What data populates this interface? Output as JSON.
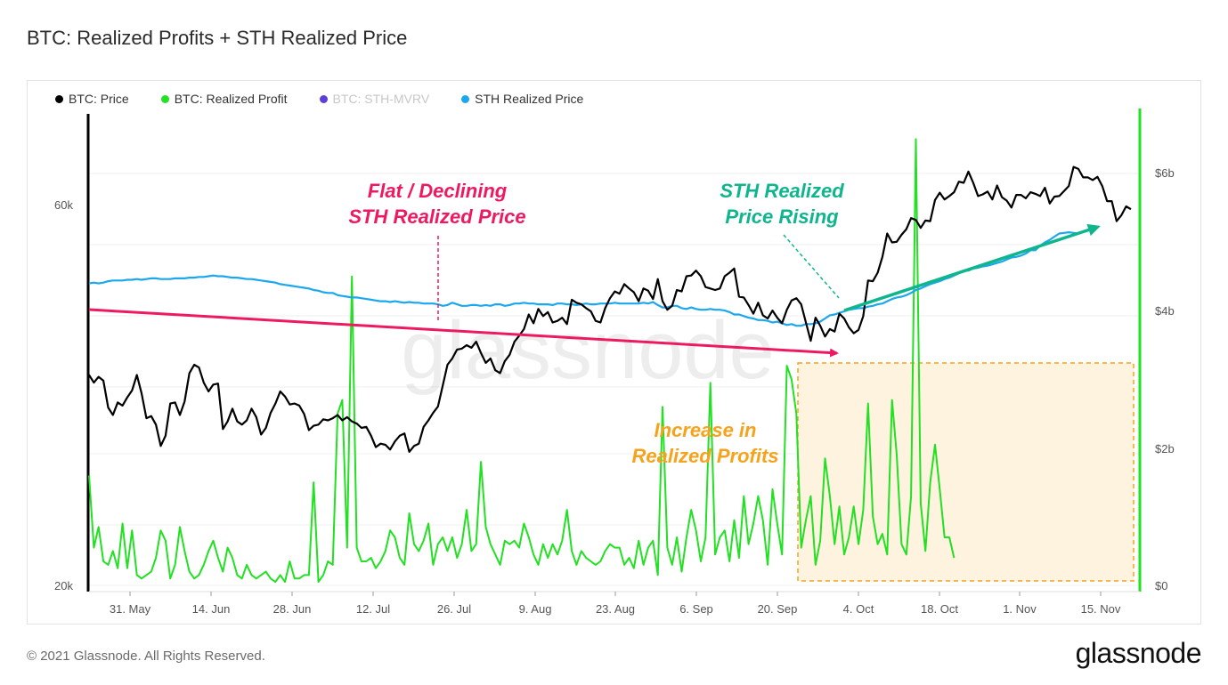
{
  "title": "BTC: Realized Profits + STH Realized Price",
  "legend": [
    {
      "label": "BTC: Price",
      "color": "#000000",
      "muted": false
    },
    {
      "label": "BTC: Realized Profit",
      "color": "#22e022",
      "muted": false
    },
    {
      "label": "BTC: STH-MVRV",
      "color": "#5b3fd6",
      "muted": true
    },
    {
      "label": "STH Realized Price",
      "color": "#1aa7ee",
      "muted": false
    }
  ],
  "footer": "© 2021 Glassnode. All Rights Reserved.",
  "brand": "glassnode",
  "watermark": "glassnode",
  "chart_data": {
    "type": "line",
    "x_ticks": [
      "31. May",
      "14. Jun",
      "28. Jun",
      "12. Jul",
      "26. Jul",
      "9. Aug",
      "23. Aug",
      "6. Sep",
      "20. Sep",
      "4. Oct",
      "18. Oct",
      "1. Nov",
      "15. Nov"
    ],
    "y_left_ticks": [
      "60k",
      "20k"
    ],
    "y_right_ticks": [
      "$6b",
      "$4b",
      "$2b",
      "$0"
    ],
    "y_left_scale": "log",
    "y_right_range": [
      0,
      7000000000
    ],
    "series": [
      {
        "name": "BTC: Price",
        "axis": "left",
        "color": "#000000",
        "values": [
          36700,
          35900,
          36500,
          36100,
          33400,
          32700,
          33900,
          33600,
          34400,
          35100,
          36700,
          34800,
          32400,
          32600,
          31800,
          29900,
          30800,
          33800,
          33900,
          32700,
          34000,
          36900,
          37800,
          37500,
          35900,
          35000,
          35700,
          35800,
          31400,
          32100,
          33300,
          32100,
          31800,
          32200,
          33300,
          32500,
          30900,
          31500,
          32900,
          33800,
          35000,
          34500,
          33700,
          33800,
          33600,
          32800,
          31300,
          31700,
          31800,
          32300,
          32200,
          32400,
          32700,
          32200,
          32500,
          32100,
          31900,
          31500,
          31600,
          30800,
          29800,
          30100,
          30000,
          29600,
          30300,
          30800,
          31000,
          29400,
          29900,
          30100,
          31600,
          32200,
          32900,
          33500,
          35600,
          37800,
          38500,
          39500,
          39600,
          40000,
          39700,
          40400,
          39100,
          38000,
          38500,
          37200,
          36900,
          38200,
          38900,
          40400,
          41100,
          41900,
          43700,
          42600,
          44400,
          43500,
          44000,
          42700,
          42900,
          43300,
          42500,
          45600,
          45200,
          45000,
          44500,
          44100,
          42900,
          42700,
          44500,
          45800,
          46700,
          46400,
          47700,
          47100,
          46600,
          45400,
          47100,
          46800,
          45700,
          48400,
          45400,
          44300,
          44800,
          46900,
          46700,
          48800,
          48900,
          49600,
          48800,
          47300,
          47100,
          46900,
          47100,
          48800,
          49300,
          49900,
          46000,
          45900,
          44900,
          43800,
          45200,
          43600,
          43200,
          44200,
          43300,
          42600,
          44300,
          45500,
          45800,
          45000,
          42700,
          40500,
          43300,
          42300,
          41000,
          41900,
          41600,
          43800,
          43200,
          42100,
          41400,
          41800,
          43500,
          48200,
          48100,
          49300,
          51600,
          55200,
          53800,
          53900,
          55000,
          55900,
          57700,
          57400,
          56100,
          57300,
          57200,
          60800,
          62100,
          60900,
          61500,
          62200,
          64100,
          63900,
          66000,
          63900,
          61500,
          61800,
          62300,
          60900,
          63400,
          61300,
          60700,
          59500,
          61700,
          61700,
          61100,
          62200,
          61900,
          61500,
          63000,
          60200,
          61400,
          61500,
          62400,
          63300,
          66900,
          66500,
          64900,
          64900,
          64400,
          65000,
          63300,
          60600,
          60600,
          57200,
          58200,
          59700,
          59200
        ]
      },
      {
        "name": "STH Realized Price",
        "axis": "left",
        "color": "#1aa7ee",
        "values": [
          47800,
          47900,
          47800,
          47900,
          48100,
          48200,
          48200,
          48200,
          48300,
          48300,
          48400,
          48300,
          48400,
          48500,
          48500,
          48400,
          48400,
          48400,
          48500,
          48500,
          48500,
          48600,
          48600,
          48700,
          48700,
          48800,
          48900,
          48800,
          48800,
          48700,
          48600,
          48600,
          48500,
          48400,
          48400,
          48300,
          48200,
          48100,
          48000,
          47900,
          47700,
          47600,
          47500,
          47400,
          47300,
          47200,
          47100,
          46900,
          46800,
          46600,
          46500,
          46500,
          46200,
          46100,
          46000,
          45900,
          45900,
          45800,
          45700,
          45600,
          45500,
          45400,
          45400,
          45300,
          45400,
          45300,
          45200,
          45300,
          45200,
          45200,
          45100,
          45100,
          45100,
          45000,
          44800,
          44900,
          45200,
          45000,
          44800,
          44800,
          44900,
          44900,
          44800,
          44900,
          44800,
          45000,
          45000,
          44800,
          44900,
          45100,
          45100,
          45200,
          45100,
          45100,
          45000,
          45000,
          45000,
          44900,
          45100,
          45100,
          45000,
          45000,
          44900,
          45000,
          45100,
          45000,
          45000,
          45100,
          45100,
          45100,
          45200,
          45100,
          45100,
          45100,
          45100,
          45100,
          45200,
          45100,
          45300,
          44900,
          44600,
          44600,
          44800,
          44800,
          44500,
          44400,
          44600,
          44400,
          44300,
          44300,
          44400,
          44300,
          44300,
          44200,
          44000,
          43700,
          43700,
          43500,
          43300,
          43200,
          43000,
          43000,
          42900,
          42700,
          42800,
          42600,
          42400,
          42500,
          42300,
          42300,
          42500,
          42500,
          42600,
          42800,
          43200,
          43600,
          43700,
          43900,
          44100,
          44300,
          44400,
          44500,
          44500,
          44700,
          44800,
          45000,
          45100,
          45400,
          45700,
          45900,
          46000,
          46200,
          46500,
          46900,
          47100,
          47400,
          47700,
          47900,
          48100,
          48400,
          48600,
          48900,
          49200,
          49600,
          49600,
          49900,
          50000,
          50200,
          50300,
          50500,
          50700,
          50900,
          51200,
          51500,
          51600,
          51800,
          52100,
          52600,
          52600,
          53300,
          53800,
          54200,
          54700,
          55200,
          55300,
          55400,
          55300,
          55200
        ]
      },
      {
        "name": "BTC: Realized Profit",
        "axis": "right",
        "color": "#22e022",
        "values": [
          1600000000.0,
          550000000.0,
          850000000.0,
          350000000.0,
          300000000.0,
          500000000.0,
          250000000.0,
          900000000.0,
          250000000.0,
          800000000.0,
          150000000.0,
          100000000.0,
          150000000.0,
          200000000.0,
          400000000.0,
          800000000.0,
          650000000.0,
          100000000.0,
          300000000.0,
          850000000.0,
          500000000.0,
          200000000.0,
          100000000.0,
          150000000.0,
          300000000.0,
          500000000.0,
          650000000.0,
          400000000.0,
          200000000.0,
          550000000.0,
          400000000.0,
          150000000.0,
          100000000.0,
          300000000.0,
          150000000.0,
          100000000.0,
          150000000.0,
          200000000.0,
          100000000.0,
          50000000.0,
          150000000.0,
          50000000.0,
          350000000.0,
          100000000.0,
          100000000.0,
          150000000.0,
          150000000.0,
          1500000000.0,
          50000000.0,
          150000000.0,
          350000000.0,
          300000000.0,
          2500000000.0,
          2700000000.0,
          550000000.0,
          4500000000.0,
          550000000.0,
          350000000.0,
          350000000.0,
          400000000.0,
          250000000.0,
          350000000.0,
          500000000.0,
          800000000.0,
          700000000.0,
          400000000.0,
          300000000.0,
          1050000000.0,
          600000000.0,
          500000000.0,
          650000000.0,
          900000000.0,
          300000000.0,
          600000000.0,
          700000000.0,
          500000000.0,
          700000000.0,
          400000000.0,
          600000000.0,
          1100000000.0,
          500000000.0,
          600000000.0,
          1800000000.0,
          850000000.0,
          600000000.0,
          450000000.0,
          300000000.0,
          650000000.0,
          600000000.0,
          650000000.0,
          550000000.0,
          900000000.0,
          700000000.0,
          450000000.0,
          300000000.0,
          600000000.0,
          400000000.0,
          600000000.0,
          450000000.0,
          650000000.0,
          1100000000.0,
          500000000.0,
          300000000.0,
          500000000.0,
          400000000.0,
          350000000.0,
          300000000.0,
          350000000.0,
          500000000.0,
          600000000.0,
          550000000.0,
          550000000.0,
          300000000.0,
          400000000.0,
          250000000.0,
          650000000.0,
          300000000.0,
          550000000.0,
          650000000.0,
          150000000.0,
          2600000000.0,
          550000000.0,
          300000000.0,
          700000000.0,
          200000000.0,
          700000000.0,
          1100000000.0,
          800000000.0,
          350000000.0,
          700000000.0,
          2950000000.0,
          450000000.0,
          700000000.0,
          800000000.0,
          350000000.0,
          950000000.0,
          400000000.0,
          1300000000.0,
          600000000.0,
          900000000.0,
          1300000000.0,
          950000000.0,
          300000000.0,
          1400000000.0,
          900000000.0,
          450000000.0,
          3200000000.0,
          3000000000.0,
          2500000000.0,
          550000000.0,
          950000000.0,
          1300000000.0,
          300000000.0,
          650000000.0,
          1850000000.0,
          1300000000.0,
          600000000.0,
          1150000000.0,
          450000000.0,
          700000000.0,
          1150000000.0,
          600000000.0,
          1100000000.0,
          2650000000.0,
          1000000000.0,
          600000000.0,
          750000000.0,
          450000000.0,
          2700000000.0,
          1900000000.0,
          600000000.0,
          450000000.0,
          1300000000.0,
          6500000000.0,
          1200000000.0,
          500000000.0,
          1500000000.0,
          2050000000.0,
          1400000000.0,
          700000000.0,
          700000000.0,
          400000000.0
        ]
      },
      {
        "name": "BTC: STH-MVRV",
        "axis": "right",
        "color": "#5b3fd6",
        "values": []
      }
    ],
    "annotations": [
      {
        "text": [
          "Flat / Declining",
          "STH Realized Price"
        ],
        "color": "#ee1a5f"
      },
      {
        "text": [
          "STH Realized",
          "Price Rising"
        ],
        "color": "#0fb58d"
      },
      {
        "text": [
          "Increase in",
          "Realized Profits"
        ],
        "color": "#f7a21b"
      }
    ]
  }
}
